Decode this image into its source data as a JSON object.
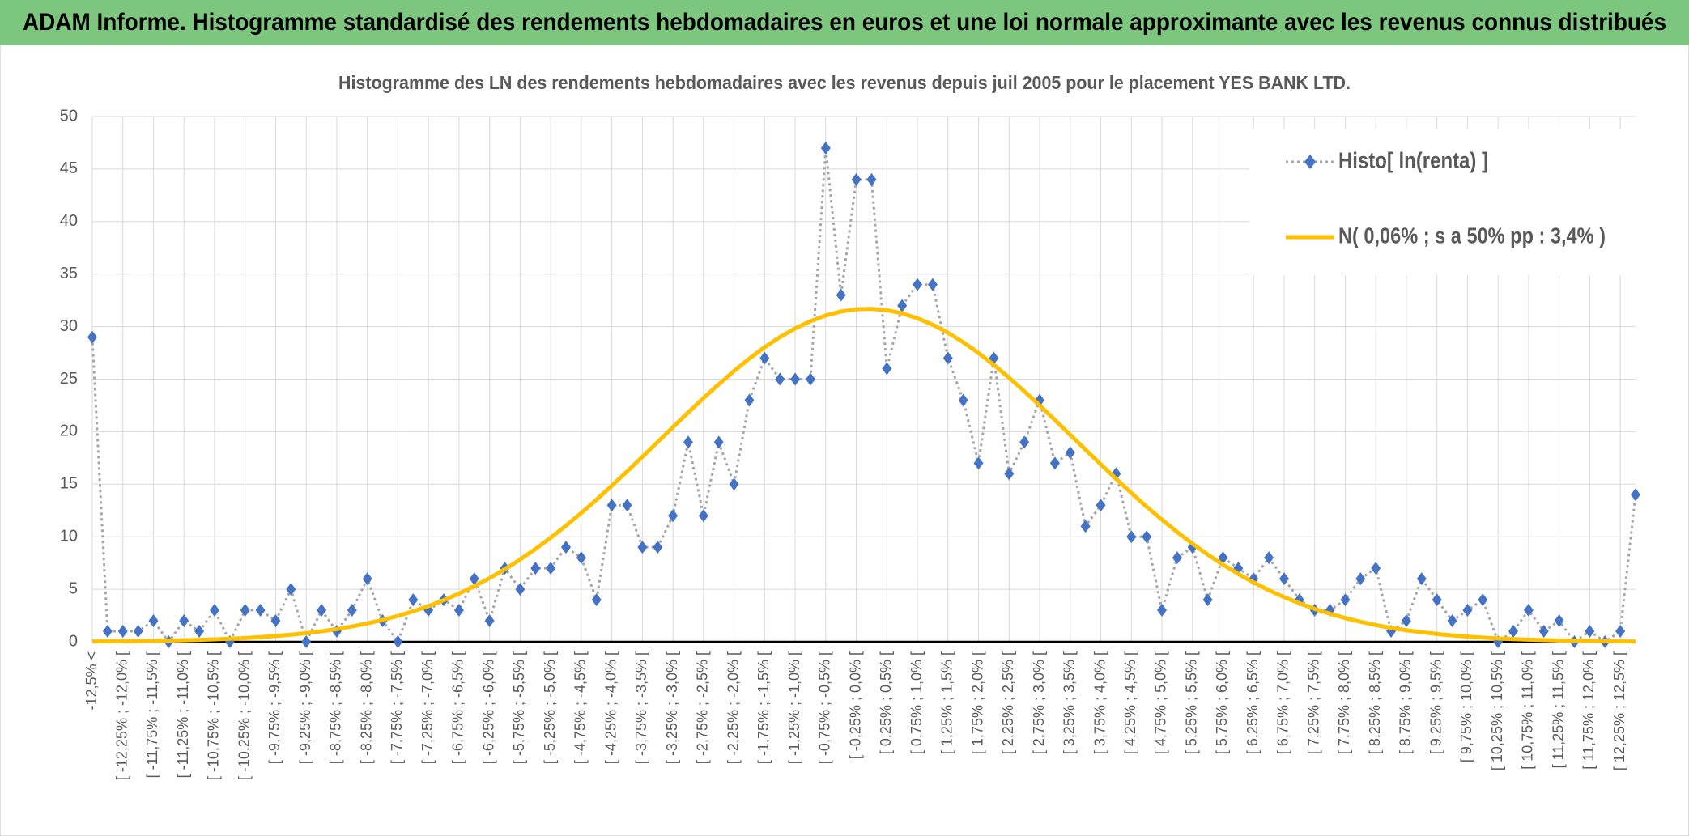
{
  "header": {
    "title": "ADAM Informe. Histogramme standardisé des rendements hebdomadaires en euros et une loi normale approximante avec les revenus connus distribués"
  },
  "chart_data": {
    "type": "line",
    "title": "Histogramme des LN des rendements hebdomadaires avec les revenus depuis juil 2005 pour le placement YES BANK LTD.",
    "categories": [
      "-12,5% <",
      null,
      "[ -12,25% ; -12,0% [",
      null,
      "[ -11,75% ; -11,5% [",
      null,
      "[ -11,25% ; -11,0% [",
      null,
      "[ -10,75% ; -10,5% [",
      null,
      "[ -10,25% ; -10,0% [",
      null,
      "[ -9,75% ; -9,5% [",
      null,
      "[ -9,25% ; -9,0% [",
      null,
      "[ -8,75% ; -8,5% [",
      null,
      "[ -8,25% ; -8,0% [",
      null,
      "[ -7,75% ; -7,5% [",
      null,
      "[ -7,25% ; -7,0% [",
      null,
      "[ -6,75% ; -6,5% [",
      null,
      "[ -6,25% ; -6,0% [",
      null,
      "[ -5,75% ; -5,5% [",
      null,
      "[ -5,25% ; -5,0% [",
      null,
      "[ -4,75% ; -4,5% [",
      null,
      "[ -4,25% ; -4,0% [",
      null,
      "[ -3,75% ; -3,5% [",
      null,
      "[ -3,25% ; -3,0% [",
      null,
      "[ -2,75% ; -2,5% [",
      null,
      "[ -2,25% ; -2,0% [",
      null,
      "[ -1,75% ; -1,5% [",
      null,
      "[ -1,25% ; -1,0% [",
      null,
      "[ -0,75% ; -0,5% [",
      null,
      "[ -0,25% ; 0,0% [",
      null,
      "[ 0,25% ; 0,5% [",
      null,
      "[ 0,75% ; 1,0% [",
      null,
      "[ 1,25% ; 1,5% [",
      null,
      "[ 1,75% ; 2,0% [",
      null,
      "[ 2,25% ; 2,5% [",
      null,
      "[ 2,75% ; 3,0% [",
      null,
      "[ 3,25% ; 3,5% [",
      null,
      "[ 3,75% ; 4,0% [",
      null,
      "[ 4,25% ; 4,5% [",
      null,
      "[ 4,75% ; 5,0% [",
      null,
      "[ 5,25% ; 5,5% [",
      null,
      "[ 5,75% ; 6,0% [",
      null,
      "[ 6,25% ; 6,5% [",
      null,
      "[ 6,75% ; 7,0% [",
      null,
      "[ 7,25% ; 7,5% [",
      null,
      "[ 7,75% ; 8,0% [",
      null,
      "[ 8,25% ; 8,5% [",
      null,
      "[ 8,75% ; 9,0% [",
      null,
      "[ 9,25% ; 9,5% [",
      null,
      "[ 9,75% ; 10,0% [",
      null,
      "[ 10,25% ; 10,5% [",
      null,
      "[ 10,75% ; 11,0% [",
      null,
      "[ 11,25% ; 11,5% [",
      null,
      "[ 11,75% ; 12,0% [",
      null,
      "[ 12,25% ; 12,5% [",
      null
    ],
    "series": [
      {
        "name": "Histo[ ln(renta) ]",
        "color": "#4472c4",
        "line_color": "#a6a6a6",
        "marker": "diamond",
        "line": "dotted",
        "values": [
          29,
          1,
          1,
          1,
          2,
          0,
          2,
          1,
          3,
          0,
          3,
          3,
          2,
          5,
          0,
          3,
          1,
          3,
          6,
          2,
          0,
          4,
          3,
          4,
          3,
          6,
          2,
          7,
          5,
          7,
          7,
          9,
          8,
          4,
          13,
          13,
          9,
          9,
          12,
          19,
          12,
          19,
          15,
          23,
          27,
          25,
          25,
          25,
          47,
          33,
          44,
          44,
          26,
          32,
          34,
          34,
          27,
          23,
          17,
          27,
          16,
          19,
          23,
          17,
          18,
          11,
          13,
          16,
          10,
          10,
          3,
          8,
          9,
          4,
          8,
          7,
          6,
          8,
          6,
          4,
          3,
          3,
          4,
          6,
          7,
          1,
          2,
          6,
          4,
          2,
          3,
          4,
          0,
          1,
          3,
          1,
          2,
          0,
          1,
          0,
          1,
          14
        ]
      },
      {
        "name": "N( 0,06% ; s a 50% pp : 3,4% )",
        "color": "#ffc000",
        "line": "solid",
        "values": [
          0.03,
          0.04,
          0.05,
          0.07,
          0.09,
          0.11,
          0.14,
          0.18,
          0.23,
          0.29,
          0.36,
          0.44,
          0.55,
          0.67,
          0.82,
          1.0,
          1.21,
          1.46,
          1.75,
          2.08,
          2.46,
          2.9,
          3.4,
          3.96,
          4.59,
          5.29,
          6.06,
          6.91,
          7.83,
          8.83,
          9.91,
          11.05,
          12.26,
          13.53,
          14.86,
          16.22,
          17.61,
          19.02,
          20.43,
          21.83,
          23.2,
          24.52,
          25.78,
          26.96,
          28.04,
          29.0,
          29.83,
          30.52,
          31.06,
          31.44,
          31.65,
          31.69,
          31.56,
          31.27,
          30.8,
          30.18,
          29.42,
          28.51,
          27.49,
          26.36,
          25.14,
          23.84,
          22.5,
          21.11,
          19.7,
          18.29,
          16.89,
          15.51,
          14.16,
          12.86,
          11.63,
          10.45,
          9.34,
          8.3,
          7.34,
          6.46,
          5.65,
          4.91,
          4.25,
          3.66,
          3.13,
          2.67,
          2.26,
          1.9,
          1.59,
          1.32,
          1.1,
          0.91,
          0.74,
          0.61,
          0.49,
          0.4,
          0.32,
          0.25,
          0.2,
          0.16,
          0.12,
          0.1,
          0.08,
          0.06,
          0.04,
          0.03
        ]
      }
    ],
    "ylim": [
      0,
      50
    ],
    "yticks": [
      0,
      5,
      10,
      15,
      20,
      25,
      30,
      35,
      40,
      45,
      50
    ],
    "grid": true,
    "legend": "upper right"
  }
}
